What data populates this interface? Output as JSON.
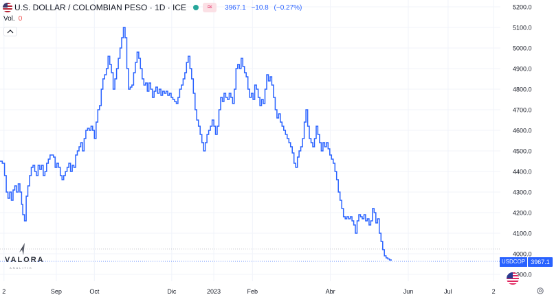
{
  "header": {
    "symbol_title": "U.S. DOLLAR / COLOMBIAN PESO · 1D · ICE",
    "approx_badge": "≈",
    "last": "3967.1",
    "change": "−10.8",
    "change_pct": "(−0.27%)"
  },
  "volume": {
    "label": "Vol.",
    "value": "0"
  },
  "watermark": {
    "brand": "VALORA",
    "sub": "ANALITIK"
  },
  "price_tags": {
    "symbol": "USDCOP",
    "last": "3967.1"
  },
  "colors": {
    "line": "#2962ff",
    "live": "#26a69a",
    "negative": "#ef5350",
    "grid": "#f0f3fa"
  },
  "chart_data": {
    "type": "line",
    "title": "U.S. DOLLAR / COLOMBIAN PESO · 1D · ICE",
    "xlabel": "",
    "ylabel": "",
    "ylim": [
      3880,
      5230
    ],
    "y_ticks": [
      5200,
      5100,
      5000,
      4900,
      4800,
      4700,
      4600,
      4500,
      4400,
      4300,
      4200,
      4100,
      4000,
      3900
    ],
    "y_tick_labels": [
      "5200.0",
      "5100.0",
      "5000.0",
      "4900.0",
      "4800.0",
      "4700.0",
      "4600.0",
      "4500.0",
      "4400.0",
      "4300.0",
      "4200.0",
      "4100.0",
      "4000.0",
      "3900.0"
    ],
    "x_tick_labels": [
      {
        "label": "2",
        "x": 0.7
      },
      {
        "label": "Sep",
        "x": 9.9
      },
      {
        "label": "Oct",
        "x": 16.6
      },
      {
        "label": "Dic",
        "x": 30.2
      },
      {
        "label": "2023",
        "x": 37.6
      },
      {
        "label": "Feb",
        "x": 44.4
      },
      {
        "label": "Abr",
        "x": 58.1
      },
      {
        "label": "Jun",
        "x": 71.8
      },
      {
        "label": "Jul",
        "x": 78.8
      },
      {
        "label": "2",
        "x": 86.8
      }
    ],
    "x_axis_note": "x values are months elapsed since the start of the plotted window (estimated from tick positions)",
    "grid": true,
    "last_value": 3967.1,
    "series": [
      {
        "values": [
          [
            0.0,
            4450
          ],
          [
            0.4,
            4440
          ],
          [
            0.8,
            4380
          ],
          [
            1.1,
            4300
          ],
          [
            1.4,
            4270
          ],
          [
            1.7,
            4300
          ],
          [
            2.0,
            4260
          ],
          [
            2.3,
            4310
          ],
          [
            2.6,
            4330
          ],
          [
            2.9,
            4300
          ],
          [
            3.2,
            4340
          ],
          [
            3.5,
            4300
          ],
          [
            3.8,
            4240
          ],
          [
            4.0,
            4190
          ],
          [
            4.3,
            4160
          ],
          [
            4.6,
            4280
          ],
          [
            4.9,
            4330
          ],
          [
            5.2,
            4380
          ],
          [
            5.5,
            4420
          ],
          [
            5.8,
            4430
          ],
          [
            6.1,
            4400
          ],
          [
            6.4,
            4380
          ],
          [
            6.7,
            4430
          ],
          [
            7.0,
            4410
          ],
          [
            7.3,
            4430
          ],
          [
            7.6,
            4380
          ],
          [
            7.9,
            4400
          ],
          [
            8.2,
            4440
          ],
          [
            8.5,
            4460
          ],
          [
            8.8,
            4480
          ],
          [
            9.1,
            4480
          ],
          [
            9.4,
            4470
          ],
          [
            9.7,
            4420
          ],
          [
            10.0,
            4440
          ],
          [
            10.3,
            4420
          ],
          [
            10.6,
            4380
          ],
          [
            10.9,
            4360
          ],
          [
            11.2,
            4380
          ],
          [
            11.5,
            4400
          ],
          [
            11.8,
            4420
          ],
          [
            12.1,
            4440
          ],
          [
            12.4,
            4400
          ],
          [
            12.7,
            4430
          ],
          [
            13.0,
            4420
          ],
          [
            13.3,
            4480
          ],
          [
            13.6,
            4500
          ],
          [
            13.9,
            4520
          ],
          [
            14.2,
            4540
          ],
          [
            14.5,
            4500
          ],
          [
            14.8,
            4560
          ],
          [
            15.1,
            4600
          ],
          [
            15.4,
            4610
          ],
          [
            15.7,
            4600
          ],
          [
            16.0,
            4620
          ],
          [
            16.3,
            4600
          ],
          [
            16.6,
            4560
          ],
          [
            16.9,
            4640
          ],
          [
            17.2,
            4700
          ],
          [
            17.5,
            4720
          ],
          [
            17.8,
            4800
          ],
          [
            18.1,
            4850
          ],
          [
            18.4,
            4870
          ],
          [
            18.7,
            4900
          ],
          [
            19.0,
            4960
          ],
          [
            19.3,
            4920
          ],
          [
            19.6,
            4880
          ],
          [
            19.9,
            4800
          ],
          [
            20.2,
            4850
          ],
          [
            20.5,
            4900
          ],
          [
            20.8,
            4950
          ],
          [
            21.1,
            5000
          ],
          [
            21.4,
            5050
          ],
          [
            21.7,
            5100
          ],
          [
            22.0,
            5050
          ],
          [
            22.3,
            4900
          ],
          [
            22.6,
            4800
          ],
          [
            22.9,
            4810
          ],
          [
            23.2,
            4820
          ],
          [
            23.5,
            4880
          ],
          [
            23.8,
            4930
          ],
          [
            24.1,
            4980
          ],
          [
            24.4,
            4950
          ],
          [
            24.7,
            4900
          ],
          [
            25.0,
            4850
          ],
          [
            25.3,
            4820
          ],
          [
            25.6,
            4830
          ],
          [
            25.9,
            4790
          ],
          [
            26.2,
            4830
          ],
          [
            26.5,
            4800
          ],
          [
            26.8,
            4760
          ],
          [
            27.1,
            4790
          ],
          [
            27.4,
            4810
          ],
          [
            27.7,
            4780
          ],
          [
            28.0,
            4800
          ],
          [
            28.3,
            4770
          ],
          [
            28.6,
            4790
          ],
          [
            28.9,
            4780
          ],
          [
            29.2,
            4790
          ],
          [
            29.5,
            4770
          ],
          [
            29.8,
            4780
          ],
          [
            30.1,
            4760
          ],
          [
            30.4,
            4750
          ],
          [
            30.7,
            4740
          ],
          [
            31.0,
            4730
          ],
          [
            31.3,
            4760
          ],
          [
            31.6,
            4800
          ],
          [
            31.9,
            4820
          ],
          [
            32.2,
            4850
          ],
          [
            32.5,
            4880
          ],
          [
            32.8,
            4930
          ],
          [
            33.1,
            4960
          ],
          [
            33.4,
            4900
          ],
          [
            33.7,
            4850
          ],
          [
            34.0,
            4780
          ],
          [
            34.3,
            4700
          ],
          [
            34.6,
            4650
          ],
          [
            34.9,
            4620
          ],
          [
            35.2,
            4580
          ],
          [
            35.5,
            4540
          ],
          [
            35.8,
            4500
          ],
          [
            36.1,
            4540
          ],
          [
            36.4,
            4580
          ],
          [
            36.7,
            4600
          ],
          [
            37.0,
            4620
          ],
          [
            37.3,
            4650
          ],
          [
            37.6,
            4620
          ],
          [
            37.9,
            4580
          ],
          [
            38.2,
            4620
          ],
          [
            38.5,
            4700
          ],
          [
            38.8,
            4760
          ],
          [
            39.1,
            4740
          ],
          [
            39.4,
            4780
          ],
          [
            39.7,
            4760
          ],
          [
            40.0,
            4750
          ],
          [
            40.3,
            4780
          ],
          [
            40.6,
            4760
          ],
          [
            40.9,
            4730
          ],
          [
            41.2,
            4800
          ],
          [
            41.5,
            4900
          ],
          [
            41.8,
            4920
          ],
          [
            42.1,
            4900
          ],
          [
            42.4,
            4950
          ],
          [
            42.7,
            4910
          ],
          [
            43.0,
            4880
          ],
          [
            43.3,
            4860
          ],
          [
            43.6,
            4800
          ],
          [
            43.9,
            4760
          ],
          [
            44.2,
            4780
          ],
          [
            44.5,
            4750
          ],
          [
            44.8,
            4820
          ],
          [
            45.1,
            4800
          ],
          [
            45.4,
            4760
          ],
          [
            45.7,
            4720
          ],
          [
            46.0,
            4750
          ],
          [
            46.3,
            4730
          ],
          [
            46.6,
            4800
          ],
          [
            46.9,
            4870
          ],
          [
            47.2,
            4840
          ],
          [
            47.5,
            4860
          ],
          [
            47.8,
            4820
          ],
          [
            48.1,
            4760
          ],
          [
            48.4,
            4700
          ],
          [
            48.7,
            4660
          ],
          [
            49.0,
            4680
          ],
          [
            49.3,
            4640
          ],
          [
            49.6,
            4620
          ],
          [
            49.9,
            4600
          ],
          [
            50.2,
            4580
          ],
          [
            50.5,
            4560
          ],
          [
            50.8,
            4540
          ],
          [
            51.1,
            4520
          ],
          [
            51.4,
            4490
          ],
          [
            51.7,
            4440
          ],
          [
            52.0,
            4420
          ],
          [
            52.3,
            4470
          ],
          [
            52.6,
            4500
          ],
          [
            52.9,
            4520
          ],
          [
            53.2,
            4560
          ],
          [
            53.5,
            4640
          ],
          [
            53.8,
            4700
          ],
          [
            54.1,
            4620
          ],
          [
            54.4,
            4560
          ],
          [
            54.7,
            4540
          ],
          [
            55.0,
            4520
          ],
          [
            55.3,
            4560
          ],
          [
            55.6,
            4620
          ],
          [
            55.9,
            4580
          ],
          [
            56.2,
            4540
          ],
          [
            56.5,
            4500
          ],
          [
            56.8,
            4540
          ],
          [
            57.1,
            4520
          ],
          [
            57.4,
            4540
          ],
          [
            57.7,
            4510
          ],
          [
            58.0,
            4480
          ],
          [
            58.3,
            4460
          ],
          [
            58.6,
            4440
          ],
          [
            58.9,
            4400
          ],
          [
            59.2,
            4360
          ],
          [
            59.5,
            4300
          ],
          [
            59.8,
            4260
          ],
          [
            60.1,
            4220
          ],
          [
            60.4,
            4180
          ],
          [
            60.7,
            4170
          ],
          [
            61.0,
            4180
          ],
          [
            61.3,
            4170
          ],
          [
            61.6,
            4180
          ],
          [
            61.9,
            4160
          ],
          [
            62.2,
            4140
          ],
          [
            62.5,
            4100
          ],
          [
            62.8,
            4160
          ],
          [
            63.1,
            4190
          ],
          [
            63.4,
            4180
          ],
          [
            63.7,
            4170
          ],
          [
            64.0,
            4190
          ],
          [
            64.3,
            4160
          ],
          [
            64.6,
            4170
          ],
          [
            64.9,
            4140
          ],
          [
            65.2,
            4160
          ],
          [
            65.5,
            4220
          ],
          [
            65.8,
            4200
          ],
          [
            66.1,
            4150
          ],
          [
            66.4,
            4170
          ],
          [
            66.7,
            4100
          ],
          [
            67.0,
            4060
          ],
          [
            67.3,
            4020
          ],
          [
            67.6,
            3990
          ],
          [
            67.9,
            3980
          ],
          [
            68.2,
            3975
          ],
          [
            68.5,
            3970
          ],
          [
            68.8,
            3967.1
          ]
        ]
      }
    ]
  }
}
